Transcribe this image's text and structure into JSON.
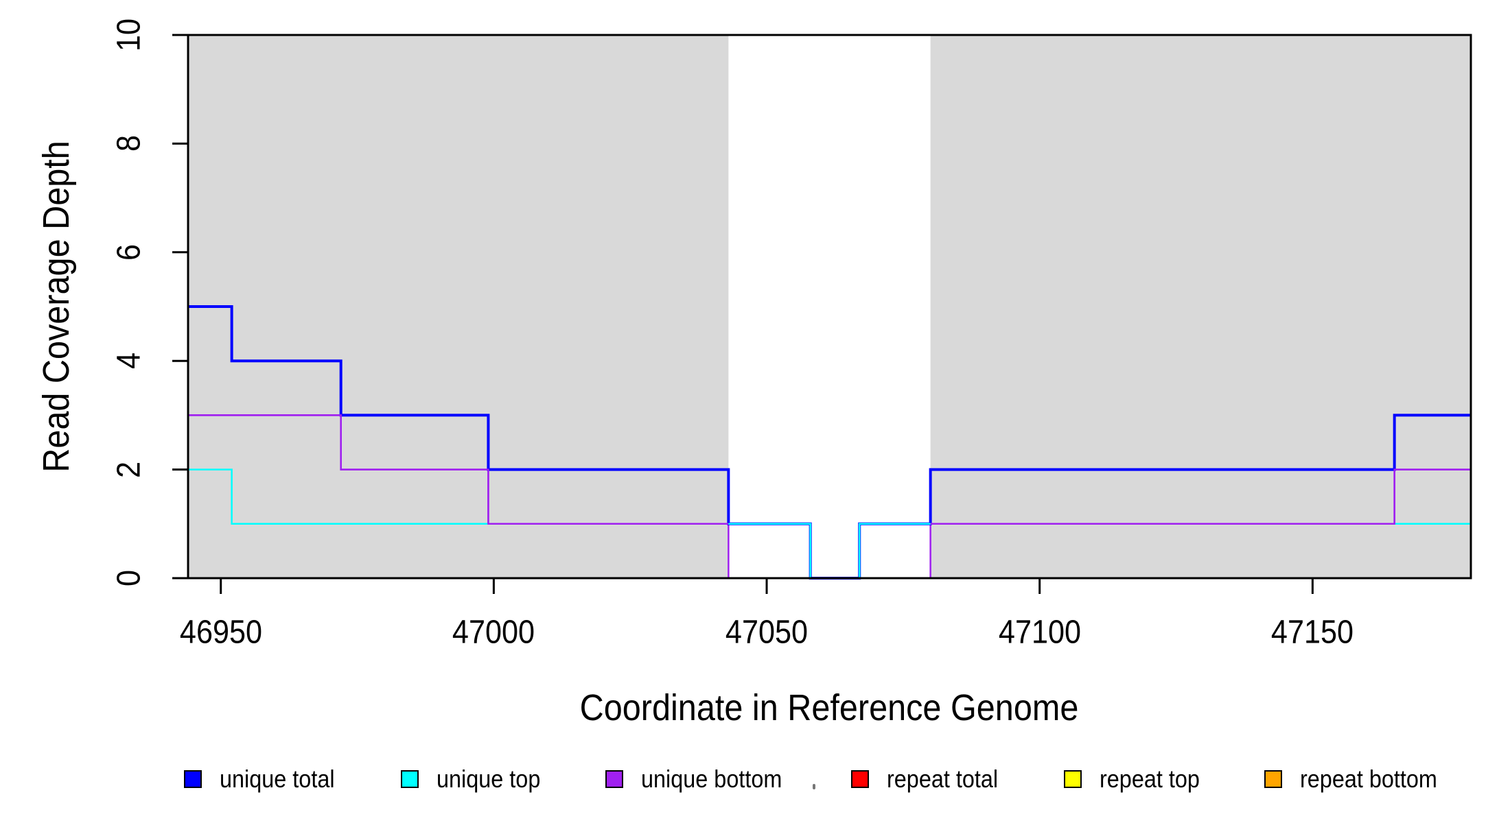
{
  "chart_data": {
    "type": "line",
    "subtype": "step-coverage-plot",
    "title": "",
    "xlabel": "Coordinate in Reference Genome",
    "ylabel": "Read Coverage Depth",
    "xlim": [
      46944,
      47179
    ],
    "ylim": [
      0,
      10
    ],
    "x_ticks": [
      46950,
      47000,
      47050,
      47100,
      47150
    ],
    "y_ticks": [
      0,
      2,
      4,
      6,
      8,
      10
    ],
    "grid": false,
    "background_color": "#ffffff",
    "shade_color": "#d9d9d9",
    "axis_color": "#000000",
    "shaded_regions": [
      {
        "x_start": 46944,
        "x_end": 47043
      },
      {
        "x_start": 47080,
        "x_end": 47179
      }
    ],
    "series": [
      {
        "name": "unique total",
        "color": "#0000ff",
        "line_width": 4,
        "steps": [
          [
            46944,
            5
          ],
          [
            46952,
            4
          ],
          [
            46972,
            3
          ],
          [
            46999,
            2
          ],
          [
            47043,
            1
          ],
          [
            47058,
            0
          ],
          [
            47067,
            1
          ],
          [
            47080,
            2
          ],
          [
            47165,
            3
          ]
        ]
      },
      {
        "name": "unique top",
        "color": "#00ffff",
        "line_width": 2.5,
        "steps": [
          [
            46944,
            2
          ],
          [
            46952,
            1
          ],
          [
            47058,
            0
          ],
          [
            47067,
            1
          ]
        ]
      },
      {
        "name": "unique bottom",
        "color": "#a020f0",
        "line_width": 2.5,
        "steps": [
          [
            46944,
            3
          ],
          [
            46972,
            2
          ],
          [
            46999,
            1
          ],
          [
            47043,
            0
          ],
          [
            47080,
            1
          ],
          [
            47165,
            2
          ]
        ]
      },
      {
        "name": "repeat total",
        "color": "#ff0000",
        "line_width": 2.5,
        "steps": [
          [
            46944,
            0
          ]
        ]
      },
      {
        "name": "repeat top",
        "color": "#ffff00",
        "line_width": 2.5,
        "steps": [
          [
            46944,
            0
          ]
        ]
      },
      {
        "name": "repeat bottom",
        "color": "#ffa500",
        "line_width": 2.5,
        "steps": [
          [
            46944,
            0
          ]
        ]
      }
    ],
    "legend": {
      "position": "bottom",
      "items": [
        {
          "label": "unique total",
          "color": "#0000ff"
        },
        {
          "label": "unique top",
          "color": "#00ffff"
        },
        {
          "label": "unique bottom",
          "color": "#a020f0"
        },
        {
          "label": "repeat total",
          "color": "#ff0000"
        },
        {
          "label": "repeat top",
          "color": "#ffff00"
        },
        {
          "label": "repeat bottom",
          "color": "#ffa500"
        }
      ]
    }
  }
}
